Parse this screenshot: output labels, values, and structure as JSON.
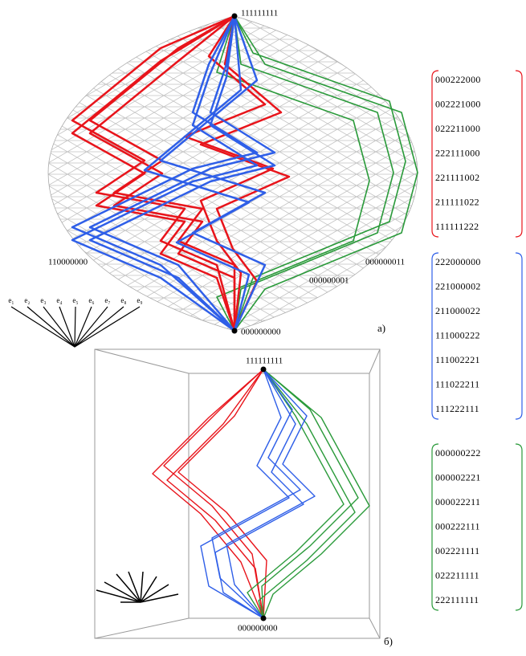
{
  "panel_a": {
    "top_label": "111111111",
    "left_label": "110000000",
    "right_label": "000000011",
    "right_lower_label": "000000001",
    "bottom_label": "000000000",
    "caption": "a)",
    "basis_labels": [
      "e₁",
      "e₂",
      "e₃",
      "e₄",
      "e₅",
      "e₆",
      "e₇",
      "e₈",
      "e₉"
    ]
  },
  "panel_b": {
    "top_label": "111111111",
    "bottom_label": "000000000",
    "caption": "б)"
  },
  "sequences": [
    {
      "items": [
        "000222000",
        "002221000",
        "022211000",
        "222111000",
        "221111002",
        "211111022",
        "111111222"
      ]
    },
    {
      "items": [
        "222000000",
        "221000002",
        "211000022",
        "111000222",
        "111002221",
        "111022211",
        "111222111"
      ]
    },
    {
      "items": [
        "000000222",
        "000002221",
        "000022211",
        "000222111",
        "002221111",
        "022211111",
        "222111111"
      ]
    }
  ]
}
